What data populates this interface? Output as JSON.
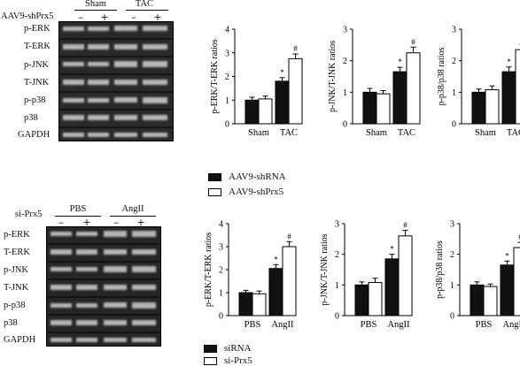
{
  "panel_top": {
    "header": {
      "row_label": "AAV9-shPrx5",
      "group1": "Sham",
      "group2": "TAC",
      "signs": [
        "–",
        "+",
        "–",
        "+"
      ]
    },
    "blot_labels": [
      "p-ERK",
      "T-ERK",
      "p-JNK",
      "T-JNK",
      "p-p38",
      "p38",
      "GAPDH"
    ],
    "legend": [
      {
        "label": "AAV9-shRNA",
        "color": "#111111"
      },
      {
        "label": "AAV9-shPrx5",
        "color": "#ffffff"
      }
    ]
  },
  "panel_bottom": {
    "header": {
      "row_label": "si-Prx5",
      "group1": "PBS",
      "group2": "AngII",
      "signs": [
        "–",
        "+",
        "–",
        "+"
      ]
    },
    "blot_labels": [
      "p-ERK",
      "T-ERK",
      "p-JNK",
      "T-JNK",
      "p-p38",
      "p38",
      "GAPDH"
    ],
    "legend": [
      {
        "label": "siRNA",
        "color": "#111111"
      },
      {
        "label": "si-Prx5",
        "color": "#ffffff"
      }
    ]
  },
  "chart_data": [
    {
      "type": "bar",
      "categories": [
        "Sham",
        "TAC"
      ],
      "ylabel": "p-ERK/T-ERK ratios",
      "ylim": [
        0,
        4
      ],
      "yticks": [
        0,
        1,
        2,
        3,
        4
      ],
      "series": [
        {
          "name": "AAV9-shRNA",
          "color": "#111111",
          "values": [
            1.0,
            1.8
          ],
          "errors": [
            0.12,
            0.15
          ]
        },
        {
          "name": "AAV9-shPrx5",
          "color": "#ffffff",
          "values": [
            1.05,
            2.75
          ],
          "errors": [
            0.12,
            0.2
          ]
        }
      ],
      "annotations": [
        {
          "category": 1,
          "series": 0,
          "text": "*"
        },
        {
          "category": 1,
          "series": 1,
          "text": "#"
        }
      ]
    },
    {
      "type": "bar",
      "categories": [
        "Sham",
        "TAC"
      ],
      "ylabel": "p-JNK/T-JNK ratios",
      "ylim": [
        0,
        3
      ],
      "yticks": [
        0,
        1,
        2,
        3
      ],
      "series": [
        {
          "name": "AAV9-shRNA",
          "color": "#111111",
          "values": [
            1.0,
            1.65
          ],
          "errors": [
            0.12,
            0.14
          ]
        },
        {
          "name": "AAV9-shPrx5",
          "color": "#ffffff",
          "values": [
            0.95,
            2.25
          ],
          "errors": [
            0.1,
            0.18
          ]
        }
      ],
      "annotations": [
        {
          "category": 1,
          "series": 0,
          "text": "*"
        },
        {
          "category": 1,
          "series": 1,
          "text": "#"
        }
      ]
    },
    {
      "type": "bar",
      "categories": [
        "Sham",
        "TAC"
      ],
      "ylabel": "p-p38/p38 ratios",
      "ylim": [
        0,
        3
      ],
      "yticks": [
        0,
        1,
        2,
        3
      ],
      "series": [
        {
          "name": "AAV9-shRNA",
          "color": "#111111",
          "values": [
            1.0,
            1.65
          ],
          "errors": [
            0.1,
            0.15
          ]
        },
        {
          "name": "AAV9-shPrx5",
          "color": "#ffffff",
          "values": [
            1.08,
            2.35
          ],
          "errors": [
            0.12,
            0.17
          ]
        }
      ],
      "annotations": [
        {
          "category": 1,
          "series": 0,
          "text": "*"
        },
        {
          "category": 1,
          "series": 1,
          "text": "#"
        }
      ]
    },
    {
      "type": "bar",
      "categories": [
        "PBS",
        "AngII"
      ],
      "ylabel": "p-ERK/T-ERK ratios",
      "ylim": [
        0,
        4
      ],
      "yticks": [
        0,
        1,
        2,
        3,
        4
      ],
      "series": [
        {
          "name": "siRNA",
          "color": "#111111",
          "values": [
            1.0,
            2.05
          ],
          "errors": [
            0.1,
            0.17
          ]
        },
        {
          "name": "si-Prx5",
          "color": "#ffffff",
          "values": [
            0.95,
            3.0
          ],
          "errors": [
            0.12,
            0.22
          ]
        }
      ],
      "annotations": [
        {
          "category": 1,
          "series": 0,
          "text": "*"
        },
        {
          "category": 1,
          "series": 1,
          "text": "#"
        }
      ]
    },
    {
      "type": "bar",
      "categories": [
        "PBS",
        "AngII"
      ],
      "ylabel": "p-JNK/T-JNK ratios",
      "ylim": [
        0,
        3
      ],
      "yticks": [
        0,
        1,
        2,
        3
      ],
      "series": [
        {
          "name": "siRNA",
          "color": "#111111",
          "values": [
            1.0,
            1.85
          ],
          "errors": [
            0.1,
            0.15
          ]
        },
        {
          "name": "si-Prx5",
          "color": "#ffffff",
          "values": [
            1.08,
            2.6
          ],
          "errors": [
            0.14,
            0.18
          ]
        }
      ],
      "annotations": [
        {
          "category": 1,
          "series": 0,
          "text": "*"
        },
        {
          "category": 1,
          "series": 1,
          "text": "#"
        }
      ]
    },
    {
      "type": "bar",
      "categories": [
        "PBS",
        "AngII"
      ],
      "ylabel": "p-p38/p38 ratios",
      "ylim": [
        0,
        3
      ],
      "yticks": [
        0,
        1,
        2,
        3
      ],
      "series": [
        {
          "name": "siRNA",
          "color": "#111111",
          "values": [
            1.0,
            1.65
          ],
          "errors": [
            0.1,
            0.13
          ]
        },
        {
          "name": "si-Prx5",
          "color": "#ffffff",
          "values": [
            0.95,
            2.22
          ],
          "errors": [
            0.08,
            0.17
          ]
        }
      ],
      "annotations": [
        {
          "category": 1,
          "series": 0,
          "text": "*"
        },
        {
          "category": 1,
          "series": 1,
          "text": "#"
        }
      ]
    }
  ]
}
